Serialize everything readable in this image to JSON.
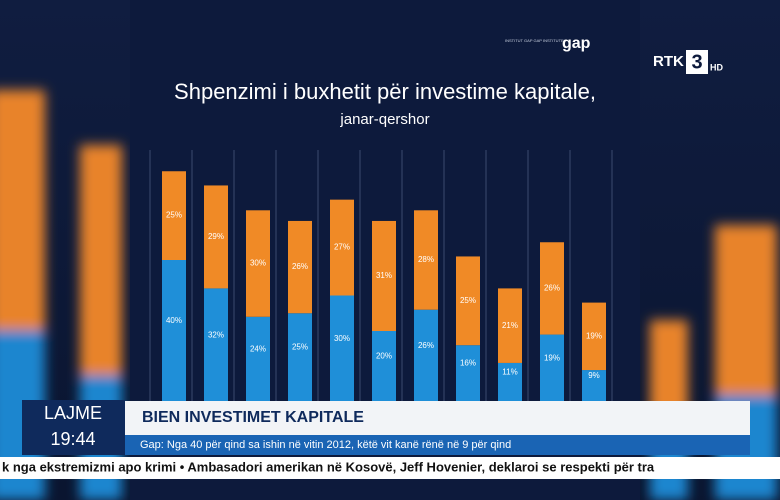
{
  "chart_data": {
    "type": "stacked_bar",
    "title": "Shpenzimi i buxhetit për investime kapitale,",
    "subtitle": "janar-qershor",
    "categories": [
      null,
      null,
      null,
      null,
      null,
      null,
      null,
      null,
      null,
      null,
      null
    ],
    "series": [
      {
        "color": "#1f8fd8",
        "values": [
          40,
          32,
          24,
          25,
          30,
          20,
          26,
          16,
          11,
          19,
          9
        ],
        "value_labels": [
          "40%",
          "32%",
          "24%",
          "25%",
          "30%",
          "20%",
          "26%",
          "16%",
          "11%",
          "19%",
          "9%"
        ]
      },
      {
        "color": "#f08a26",
        "values": [
          25,
          29,
          30,
          26,
          27,
          31,
          28,
          25,
          21,
          26,
          19
        ],
        "value_labels": [
          "25%",
          "29%",
          "30%",
          "26%",
          "27%",
          "31%",
          "28%",
          "25%",
          "21%",
          "26%",
          "19%"
        ]
      }
    ]
  },
  "logos": {
    "institute": "INSTITUT GAP GAP INSTITUTE",
    "gap": "gap",
    "channel": "RTK",
    "channel_number": "3",
    "channel_hd": "HD"
  },
  "lower_third": {
    "program": "LAJME",
    "time": "19:44",
    "headline": "BIEN INVESTIMET KAPITALE",
    "subline": "Gap: Nga 40 për qind sa ishin në vitin 2012, këtë vit kanë rënë në 9 për qind",
    "ticker": "k nga ekstremizmi apo krimi • Ambasadori amerikan në Kosovë, Jeff Hovenier, deklaroi se respekti për tra"
  }
}
